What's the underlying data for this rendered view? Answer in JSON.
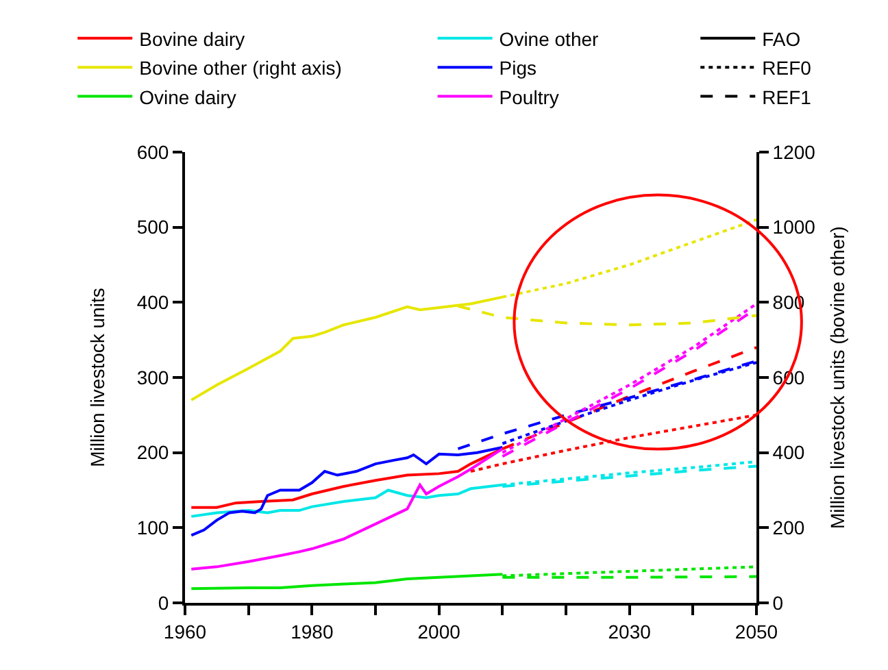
{
  "chart_data": {
    "type": "line",
    "ylabel": "Million livestock units",
    "y2label": "Million livestock units (bovine other)",
    "xlim": [
      1960,
      2050
    ],
    "xticks": [
      1960,
      {
        "value": 1970,
        "label": null
      },
      1980,
      {
        "value": 1990,
        "label": null
      },
      2000,
      {
        "value": 2010,
        "label": null
      },
      {
        "value": 2020,
        "label": null
      },
      2030,
      {
        "value": 2040,
        "label": null
      },
      2050
    ],
    "ylim": [
      0,
      600
    ],
    "yticks": [
      0,
      100,
      200,
      300,
      400,
      500,
      600
    ],
    "y2lim": [
      0,
      1200
    ],
    "y2ticks": [
      0,
      200,
      400,
      600,
      800,
      1000,
      1200
    ],
    "grid": false,
    "legend": "top",
    "marker": "none",
    "series": [
      {
        "name": "Bovine dairy",
        "color": "#ff0000",
        "line_style": "solid",
        "x": [
          1961,
          1965,
          1968,
          1972,
          1977,
          1980,
          1985,
          1990,
          1995,
          2000,
          2003,
          2005,
          2010
        ],
        "values": [
          127,
          127,
          133,
          135,
          137,
          145,
          155,
          163,
          170,
          172,
          175,
          185,
          205
        ]
      },
      {
        "name": "Bovine other (right axis)",
        "color": "#e6e600",
        "axis": "y2",
        "line_style": "solid",
        "x": [
          1961,
          1965,
          1970,
          1975,
          1977,
          1980,
          1982,
          1985,
          1990,
          1995,
          1997,
          2000,
          2005,
          2010
        ],
        "values": [
          540,
          580,
          624,
          670,
          704,
          710,
          720,
          740,
          760,
          788,
          780,
          786,
          796,
          814
        ]
      },
      {
        "name": "Ovine dairy",
        "color": "#00e600",
        "line_style": "solid",
        "x": [
          1961,
          1970,
          1975,
          1980,
          1985,
          1990,
          1995,
          2000,
          2005,
          2010
        ],
        "values": [
          19,
          20,
          20,
          23,
          25,
          27,
          32,
          34,
          36,
          38
        ]
      },
      {
        "name": "Ovine other",
        "color": "#00e6e6",
        "line_style": "solid",
        "x": [
          1961,
          1965,
          1970,
          1973,
          1975,
          1978,
          1980,
          1985,
          1990,
          1992,
          1995,
          1998,
          2000,
          2003,
          2005,
          2010
        ],
        "values": [
          115,
          120,
          123,
          120,
          123,
          123,
          128,
          135,
          140,
          150,
          143,
          140,
          143,
          145,
          152,
          157
        ]
      },
      {
        "name": "Pigs",
        "color": "#0000ff",
        "line_style": "solid",
        "x": [
          1961,
          1963,
          1965,
          1967,
          1969,
          1971,
          1972,
          1973,
          1975,
          1978,
          1980,
          1982,
          1984,
          1987,
          1990,
          1993,
          1995,
          1996,
          1998,
          2000,
          2003,
          2006,
          2010
        ],
        "values": [
          90,
          97,
          110,
          120,
          122,
          120,
          125,
          143,
          150,
          150,
          160,
          175,
          170,
          175,
          185,
          190,
          193,
          197,
          185,
          198,
          197,
          200,
          207
        ]
      },
      {
        "name": "Poultry",
        "color": "#ff00ff",
        "line_style": "solid",
        "x": [
          1961,
          1965,
          1970,
          1975,
          1978,
          1980,
          1985,
          1990,
          1995,
          1997,
          1998,
          2000,
          2003,
          2005,
          2010
        ],
        "values": [
          45,
          48,
          55,
          63,
          68,
          72,
          85,
          105,
          125,
          157,
          145,
          155,
          168,
          178,
          205
        ]
      },
      {
        "name": "FAO",
        "color": "#000000",
        "line_style": "solid"
      },
      {
        "name": "REF0",
        "color": "#000000",
        "line_style": "dotted"
      },
      {
        "name": "REF1",
        "color": "#000000",
        "line_style": "dashed"
      },
      {
        "color": "#ff0000",
        "line_style": "dotted",
        "x": [
          2005,
          2010,
          2020,
          2030,
          2040,
          2050
        ],
        "values": [
          175,
          185,
          203,
          220,
          235,
          250
        ]
      },
      {
        "color": "#ff0000",
        "line_style": "dashed",
        "x": [
          2010,
          2020,
          2030,
          2040,
          2050
        ],
        "values": [
          205,
          240,
          275,
          308,
          340
        ]
      },
      {
        "color": "#e6e600",
        "axis": "y2",
        "line_style": "dotted",
        "x": [
          2010,
          2020,
          2030,
          2040,
          2050
        ],
        "values": [
          814,
          850,
          900,
          960,
          1020
        ]
      },
      {
        "color": "#e6e600",
        "axis": "y2",
        "line_style": "dashed",
        "x": [
          2003,
          2010,
          2020,
          2030,
          2040,
          2050
        ],
        "values": [
          790,
          760,
          745,
          740,
          745,
          765
        ]
      },
      {
        "color": "#00e600",
        "line_style": "dotted",
        "x": [
          2010,
          2030,
          2050
        ],
        "values": [
          36,
          42,
          48
        ]
      },
      {
        "color": "#00e600",
        "line_style": "dashed",
        "x": [
          2010,
          2030,
          2050
        ],
        "values": [
          34,
          34,
          35
        ]
      },
      {
        "color": "#00e6e6",
        "line_style": "dotted",
        "x": [
          2010,
          2020,
          2030,
          2040,
          2050
        ],
        "values": [
          157,
          165,
          173,
          180,
          188
        ]
      },
      {
        "color": "#00e6e6",
        "line_style": "dashed",
        "x": [
          2010,
          2020,
          2030,
          2040,
          2050
        ],
        "values": [
          155,
          162,
          169,
          176,
          182
        ]
      },
      {
        "color": "#0000ff",
        "line_style": "dotted",
        "x": [
          2010,
          2020,
          2030,
          2040,
          2050
        ],
        "values": [
          212,
          242,
          270,
          296,
          320
        ]
      },
      {
        "color": "#0000ff",
        "line_style": "dashed",
        "x": [
          2003,
          2010,
          2020,
          2030,
          2040,
          2050
        ],
        "values": [
          205,
          225,
          250,
          273,
          297,
          322
        ]
      },
      {
        "color": "#ff00ff",
        "line_style": "dotted",
        "x": [
          2010,
          2020,
          2030,
          2040,
          2050
        ],
        "values": [
          200,
          245,
          290,
          340,
          398
        ]
      },
      {
        "color": "#ff00ff",
        "line_style": "dashed",
        "x": [
          2010,
          2020,
          2030,
          2040,
          2050
        ],
        "values": [
          195,
          240,
          285,
          335,
          392
        ]
      }
    ]
  }
}
